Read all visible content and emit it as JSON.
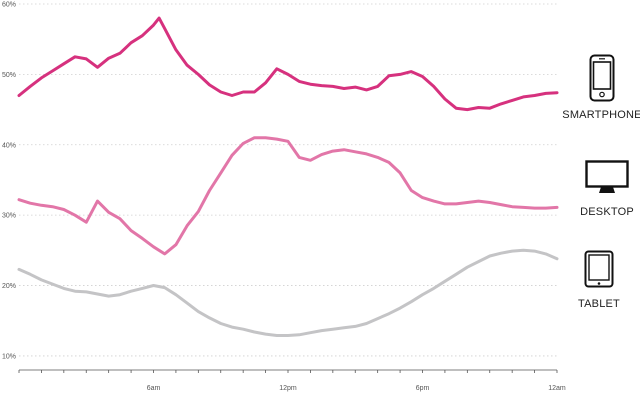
{
  "chart_data": {
    "type": "line",
    "y_ticks": [
      "60%",
      "50%",
      "40%",
      "30%",
      "20%",
      "10%"
    ],
    "y_tick_values": [
      60,
      50,
      40,
      30,
      20,
      10
    ],
    "ylim": [
      8,
      60
    ],
    "x_ticks": [
      "6am",
      "12pm",
      "6pm",
      "12am"
    ],
    "x_tick_values": [
      6,
      12,
      18,
      24
    ],
    "xlim": [
      0,
      24
    ],
    "grid": true,
    "legend": [
      {
        "label": "SMARTPHONE",
        "icon": "smartphone-icon"
      },
      {
        "label": "DESKTOP",
        "icon": "desktop-icon"
      },
      {
        "label": "TABLET",
        "icon": "tablet-icon"
      }
    ],
    "colors": {
      "smartphone": "#d6317e",
      "desktop": "#e276a8",
      "tablet": "#c4c4c6"
    },
    "series": [
      {
        "key": "smartphone",
        "x": [
          0,
          0.5,
          1,
          1.5,
          2,
          2.5,
          3,
          3.5,
          4,
          4.5,
          5,
          5.5,
          6,
          6.25,
          6.5,
          7,
          7.5,
          8,
          8.5,
          9,
          9.5,
          10,
          10.5,
          11,
          11.5,
          12,
          12.5,
          13,
          13.5,
          14,
          14.5,
          15,
          15.5,
          16,
          16.5,
          17,
          17.5,
          18,
          18.5,
          19,
          19.5,
          20,
          20.5,
          21,
          21.5,
          22,
          22.5,
          23,
          23.5,
          24
        ],
        "values": [
          47,
          48.3,
          49.5,
          50.5,
          51.5,
          52.5,
          52.2,
          51,
          52.3,
          53,
          54.5,
          55.5,
          57,
          58,
          56.5,
          53.5,
          51.3,
          50,
          48.5,
          47.5,
          47,
          47.5,
          47.5,
          48.8,
          50.8,
          50,
          49,
          48.6,
          48.4,
          48.3,
          48,
          48.2,
          47.8,
          48.3,
          49.8,
          50,
          50.4,
          49.7,
          48.3,
          46.5,
          45.2,
          45,
          45.3,
          45.2,
          45.8,
          46.3,
          46.8,
          47,
          47.3,
          47.4
        ]
      },
      {
        "key": "desktop",
        "x": [
          0,
          0.5,
          1,
          1.5,
          2,
          2.5,
          3,
          3.5,
          4,
          4.5,
          5,
          5.5,
          6,
          6.5,
          7,
          7.5,
          8,
          8.5,
          9,
          9.5,
          10,
          10.5,
          11,
          11.5,
          12,
          12.5,
          13,
          13.5,
          14,
          14.5,
          15,
          15.5,
          16,
          16.5,
          17,
          17.5,
          18,
          18.5,
          19,
          19.5,
          20,
          20.5,
          21,
          21.5,
          22,
          22.5,
          23,
          23.5,
          24
        ],
        "values": [
          32.2,
          31.7,
          31.4,
          31.2,
          30.8,
          30,
          29,
          32,
          30.4,
          29.5,
          27.8,
          26.7,
          25.5,
          24.5,
          25.8,
          28.5,
          30.5,
          33.5,
          36,
          38.5,
          40.2,
          41,
          41,
          40.8,
          40.5,
          38.2,
          37.8,
          38.6,
          39.1,
          39.3,
          39,
          38.7,
          38.2,
          37.5,
          36,
          33.5,
          32.5,
          32,
          31.6,
          31.6,
          31.8,
          32,
          31.8,
          31.5,
          31.2,
          31.1,
          31,
          31,
          31.1
        ]
      },
      {
        "key": "tablet",
        "x": [
          0,
          0.5,
          1,
          1.5,
          2,
          2.5,
          3,
          3.5,
          4,
          4.5,
          5,
          5.5,
          6,
          6.5,
          7,
          7.5,
          8,
          8.5,
          9,
          9.5,
          10,
          10.5,
          11,
          11.5,
          12,
          12.5,
          13,
          13.5,
          14,
          14.5,
          15,
          15.5,
          16,
          16.5,
          17,
          17.5,
          18,
          18.5,
          19,
          19.5,
          20,
          20.5,
          21,
          21.5,
          22,
          22.5,
          23,
          23.5,
          24
        ],
        "values": [
          22.3,
          21.6,
          20.8,
          20.2,
          19.6,
          19.2,
          19.1,
          18.8,
          18.5,
          18.7,
          19.2,
          19.6,
          20,
          19.7,
          18.7,
          17.5,
          16.3,
          15.4,
          14.6,
          14.1,
          13.8,
          13.4,
          13.1,
          12.9,
          12.9,
          13,
          13.3,
          13.6,
          13.8,
          14,
          14.2,
          14.6,
          15.3,
          16,
          16.8,
          17.7,
          18.7,
          19.6,
          20.6,
          21.6,
          22.6,
          23.4,
          24.2,
          24.6,
          24.9,
          25,
          24.9,
          24.5,
          23.8
        ]
      }
    ]
  }
}
